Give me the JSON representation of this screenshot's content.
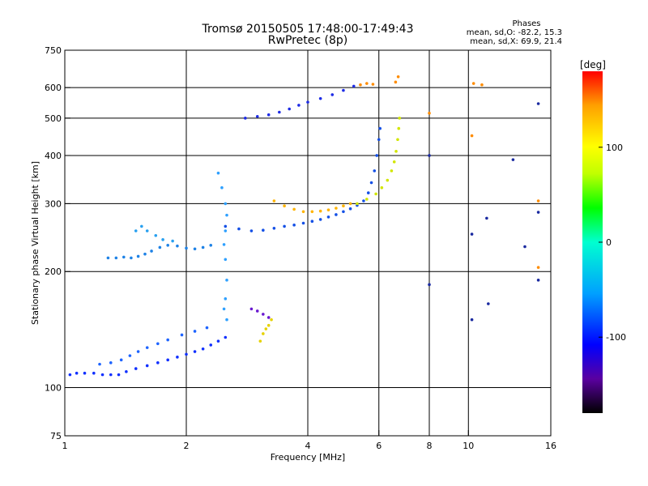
{
  "chart_data": {
    "type": "scatter",
    "title": "Tromsø 20150505 17:48:00-17:49:43",
    "subtitle": "RwPretec (8p)",
    "xlabel": "Frequency [MHz]",
    "ylabel": "Stationary phase Virtual Height [km]",
    "x_scale": "log",
    "y_scale": "log",
    "xlim": [
      1,
      16
    ],
    "ylim": [
      75,
      750
    ],
    "x_ticks": [
      1,
      2,
      4,
      6,
      8,
      10,
      16
    ],
    "y_ticks": [
      75,
      100,
      200,
      300,
      400,
      500,
      600,
      750
    ],
    "grid": true,
    "phase_stats": {
      "title": "Phases",
      "o_line": "mean, sd,O:  -82.2, 15.3",
      "x_line": "mean, sd,X:  69.9, 21.4"
    },
    "colorbar": {
      "label": "[deg]",
      "range": [
        -180,
        180
      ],
      "ticks": [
        100,
        0,
        -100
      ],
      "colormap": [
        "#000000",
        "#5a00a0",
        "#0000ff",
        "#00a0ff",
        "#00ffd0",
        "#00ff00",
        "#c0ff00",
        "#ffff00",
        "#ffa000",
        "#ff0000"
      ]
    },
    "series": [
      {
        "color": "#1030ff",
        "points": [
          [
            1.03,
            108
          ],
          [
            1.07,
            109
          ],
          [
            1.12,
            109
          ],
          [
            1.18,
            109
          ],
          [
            1.24,
            108
          ],
          [
            1.3,
            108
          ],
          [
            1.36,
            108
          ],
          [
            1.42,
            110
          ],
          [
            1.5,
            112
          ],
          [
            1.6,
            114
          ],
          [
            1.7,
            116
          ],
          [
            1.8,
            118
          ],
          [
            1.9,
            120
          ],
          [
            2.0,
            122
          ],
          [
            2.1,
            124
          ],
          [
            2.2,
            126
          ],
          [
            2.3,
            129
          ],
          [
            2.4,
            132
          ],
          [
            2.5,
            135
          ]
        ]
      },
      {
        "color": "#1e64ff",
        "points": [
          [
            1.22,
            115
          ],
          [
            1.3,
            116
          ],
          [
            1.38,
            118
          ],
          [
            1.45,
            121
          ],
          [
            1.52,
            124
          ],
          [
            1.6,
            127
          ],
          [
            1.7,
            130
          ],
          [
            1.8,
            133
          ],
          [
            1.95,
            137
          ],
          [
            2.1,
            140
          ],
          [
            2.25,
            143
          ]
        ]
      },
      {
        "color": "#1e82e6",
        "points": [
          [
            1.28,
            217
          ],
          [
            1.34,
            217
          ],
          [
            1.4,
            218
          ],
          [
            1.46,
            217
          ],
          [
            1.52,
            219
          ],
          [
            1.58,
            222
          ],
          [
            1.64,
            226
          ],
          [
            1.72,
            231
          ],
          [
            1.8,
            234
          ],
          [
            1.9,
            233
          ],
          [
            2.0,
            230
          ],
          [
            2.1,
            229
          ],
          [
            2.2,
            231
          ],
          [
            2.3,
            234
          ]
        ]
      },
      {
        "color": "#28a0f0",
        "points": [
          [
            1.5,
            255
          ],
          [
            1.55,
            262
          ],
          [
            1.6,
            255
          ],
          [
            1.68,
            248
          ],
          [
            1.75,
            242
          ],
          [
            1.85,
            240
          ]
        ]
      },
      {
        "color": "#1450e6",
        "points": [
          [
            2.5,
            262
          ],
          [
            2.7,
            258
          ],
          [
            2.9,
            255
          ],
          [
            3.1,
            256
          ],
          [
            3.3,
            259
          ],
          [
            3.5,
            262
          ],
          [
            3.7,
            264
          ],
          [
            3.9,
            267
          ],
          [
            4.1,
            270
          ],
          [
            4.3,
            273
          ],
          [
            4.5,
            277
          ],
          [
            4.7,
            281
          ],
          [
            4.9,
            286
          ],
          [
            5.1,
            291
          ],
          [
            5.3,
            297
          ],
          [
            5.5,
            305
          ],
          [
            5.65,
            320
          ],
          [
            5.75,
            340
          ],
          [
            5.85,
            365
          ],
          [
            5.93,
            400
          ],
          [
            6.0,
            440
          ],
          [
            6.04,
            470
          ]
        ]
      },
      {
        "color": "#ffb400",
        "points": [
          [
            3.3,
            305
          ],
          [
            3.5,
            296
          ],
          [
            3.7,
            290
          ],
          [
            3.9,
            286
          ],
          [
            4.1,
            286
          ],
          [
            4.3,
            287
          ],
          [
            4.5,
            289
          ],
          [
            4.7,
            292
          ],
          [
            4.9,
            296
          ],
          [
            5.1,
            300
          ]
        ]
      },
      {
        "color": "#d2e600",
        "points": [
          [
            5.3,
            300
          ],
          [
            5.6,
            308
          ],
          [
            5.9,
            318
          ],
          [
            6.1,
            330
          ],
          [
            6.3,
            345
          ],
          [
            6.45,
            365
          ],
          [
            6.55,
            385
          ],
          [
            6.62,
            410
          ],
          [
            6.68,
            440
          ],
          [
            6.72,
            470
          ],
          [
            6.75,
            500
          ]
        ]
      },
      {
        "color": "#1e2ce6",
        "points": [
          [
            2.8,
            500
          ],
          [
            3.0,
            505
          ],
          [
            3.2,
            510
          ],
          [
            3.4,
            518
          ],
          [
            3.6,
            528
          ],
          [
            3.8,
            540
          ],
          [
            4.0,
            550
          ],
          [
            4.3,
            562
          ],
          [
            4.6,
            575
          ],
          [
            4.9,
            590
          ],
          [
            5.2,
            605
          ]
        ]
      },
      {
        "color": "#2ea0ff",
        "points": [
          [
            2.4,
            360
          ],
          [
            2.45,
            330
          ],
          [
            2.5,
            300
          ],
          [
            2.52,
            280
          ],
          [
            2.5,
            255
          ],
          [
            2.48,
            235
          ],
          [
            2.5,
            215
          ],
          [
            2.52,
            190
          ],
          [
            2.5,
            170
          ],
          [
            2.48,
            160
          ],
          [
            2.52,
            150
          ]
        ]
      },
      {
        "color": "#e6d200",
        "points": [
          [
            3.05,
            132
          ],
          [
            3.1,
            138
          ],
          [
            3.15,
            142
          ],
          [
            3.2,
            145
          ],
          [
            3.25,
            150
          ]
        ]
      },
      {
        "color": "#6a1ad0",
        "points": [
          [
            2.9,
            160
          ],
          [
            3.0,
            158
          ],
          [
            3.1,
            155
          ],
          [
            3.2,
            152
          ]
        ]
      },
      {
        "color": "#ff8c00",
        "points": [
          [
            5.4,
            610
          ],
          [
            5.6,
            615
          ],
          [
            5.8,
            612
          ],
          [
            6.6,
            620
          ],
          [
            6.7,
            640
          ],
          [
            10.3,
            615
          ],
          [
            10.8,
            610
          ],
          [
            8.0,
            515
          ],
          [
            10.2,
            450
          ],
          [
            14.9,
            305
          ],
          [
            14.9,
            205
          ]
        ]
      },
      {
        "color": "#1a2aa0",
        "points": [
          [
            8.0,
            400
          ],
          [
            8.0,
            185
          ],
          [
            10.2,
            150
          ],
          [
            11.2,
            165
          ],
          [
            14.9,
            545
          ],
          [
            14.9,
            285
          ],
          [
            14.9,
            190
          ],
          [
            13.8,
            232
          ],
          [
            12.9,
            390
          ],
          [
            10.2,
            250
          ],
          [
            11.1,
            275
          ]
        ]
      }
    ]
  }
}
